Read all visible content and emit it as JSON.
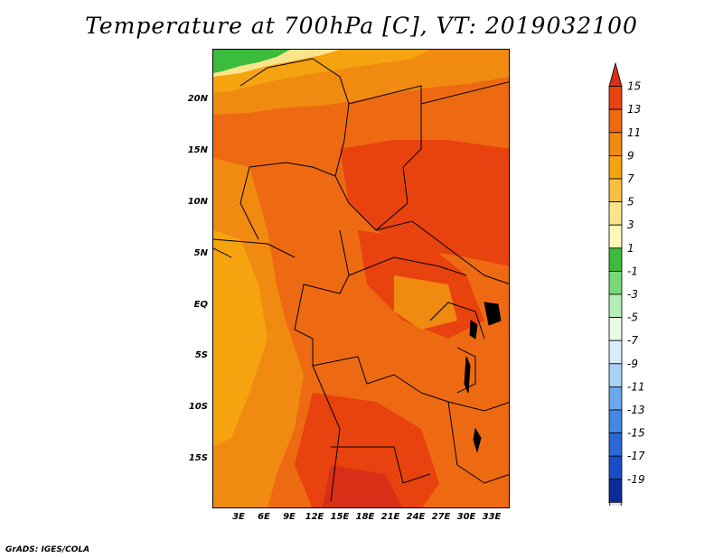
{
  "title": "Temperature at 700hPa [C], VT: 2019032100",
  "footer": "GrADS: IGES/COLA",
  "lat_labels": [
    "20N",
    "15N",
    "10N",
    "5N",
    "EQ",
    "5S",
    "10S",
    "15S"
  ],
  "lon_labels": [
    "3E",
    "6E",
    "9E",
    "12E",
    "15E",
    "18E",
    "21E",
    "24E",
    "27E",
    "30E",
    "33E"
  ],
  "colorbar": {
    "labels": [
      "15",
      "13",
      "11",
      "9",
      "7",
      "5",
      "3",
      "1",
      "-1",
      "-3",
      "-5",
      "-7",
      "-9",
      "-11",
      "-13",
      "-15",
      "-17",
      "-19"
    ],
    "colors": [
      "#d83016",
      "#e8420f",
      "#ee6a12",
      "#f08a10",
      "#f5a30f",
      "#f8c040",
      "#fbe58c",
      "#fdf7b8",
      "#3cbc3c",
      "#78d878",
      "#b4eeb4",
      "#e8fae8",
      "#d8ecfc",
      "#a8d2f8",
      "#6aa8ec",
      "#4488e4",
      "#2a68d8",
      "#1a4cc8",
      "#0c2c9c",
      "#e0e0f8"
    ]
  },
  "colors": {
    "hot": "#d83016",
    "warm": "#e8420f",
    "orange": "#ee6a12",
    "light_orange": "#f5a30f",
    "yellow": "#fbe58c",
    "green": "#3cbc3c"
  }
}
